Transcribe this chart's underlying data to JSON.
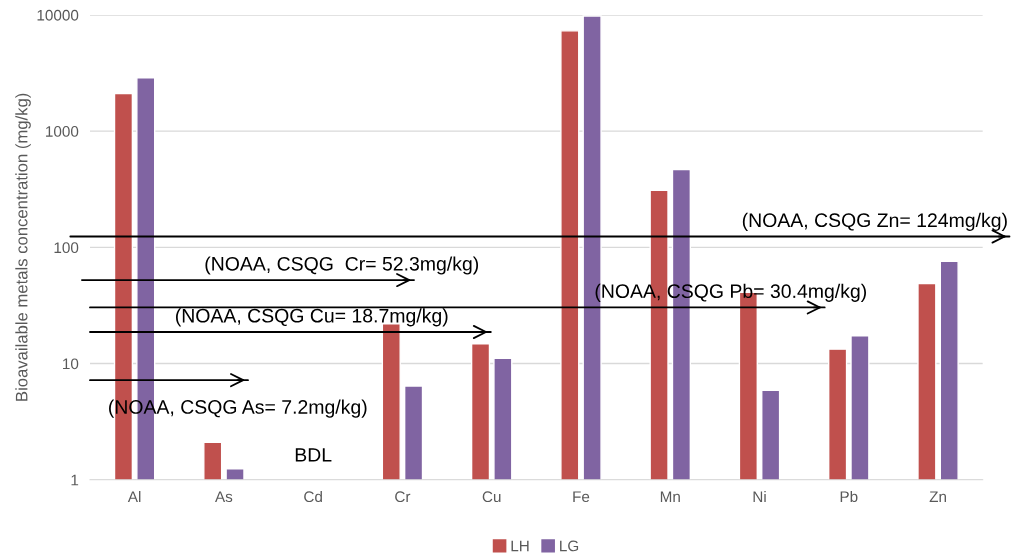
{
  "chart_data": {
    "type": "bar",
    "ylabel": "Bioavailable metals concentration (mg/kg)",
    "categories": [
      "Al",
      "As",
      "Cd",
      "Cr",
      "Cu",
      "Fe",
      "Mn",
      "Ni",
      "Pb",
      "Zn"
    ],
    "series": [
      {
        "name": "LH",
        "color": "#c0504d",
        "values": [
          2110,
          2.1,
          null,
          22,
          14.8,
          7300,
          310,
          41,
          13.3,
          48.8
        ]
      },
      {
        "name": "LG",
        "color": "#8064a2",
        "values": [
          2880,
          1.24,
          null,
          6.4,
          11.1,
          9800,
          468,
          5.9,
          17.3,
          76
        ]
      }
    ],
    "log": true,
    "ylim": [
      1,
      10000
    ],
    "yticks": [
      1,
      10,
      100,
      1000,
      10000
    ],
    "grid": "y",
    "legend": "bottom",
    "ref_lines": [
      {
        "axis": "y",
        "value": 124,
        "label": "(NOAA, CSQG Zn= 124mg/kg)",
        "color": "#000000"
      },
      {
        "axis": "y",
        "value": 52.3,
        "label": "(NOAA, CSQG  Cr= 52.3mg/kg)",
        "color": "#000000"
      },
      {
        "axis": "y",
        "value": 30.4,
        "label": "(NOAA, CSQG Pb= 30.4mg/kg)",
        "color": "#000000"
      },
      {
        "axis": "y",
        "value": 18.7,
        "label": "(NOAA, CSQG Cu= 18.7mg/kg)",
        "color": "#000000"
      },
      {
        "axis": "y",
        "value": 7.2,
        "label": "(NOAA, CSQG As= 7.2mg/kg)",
        "color": "#000000"
      }
    ],
    "annotations": [
      "BDL"
    ]
  }
}
